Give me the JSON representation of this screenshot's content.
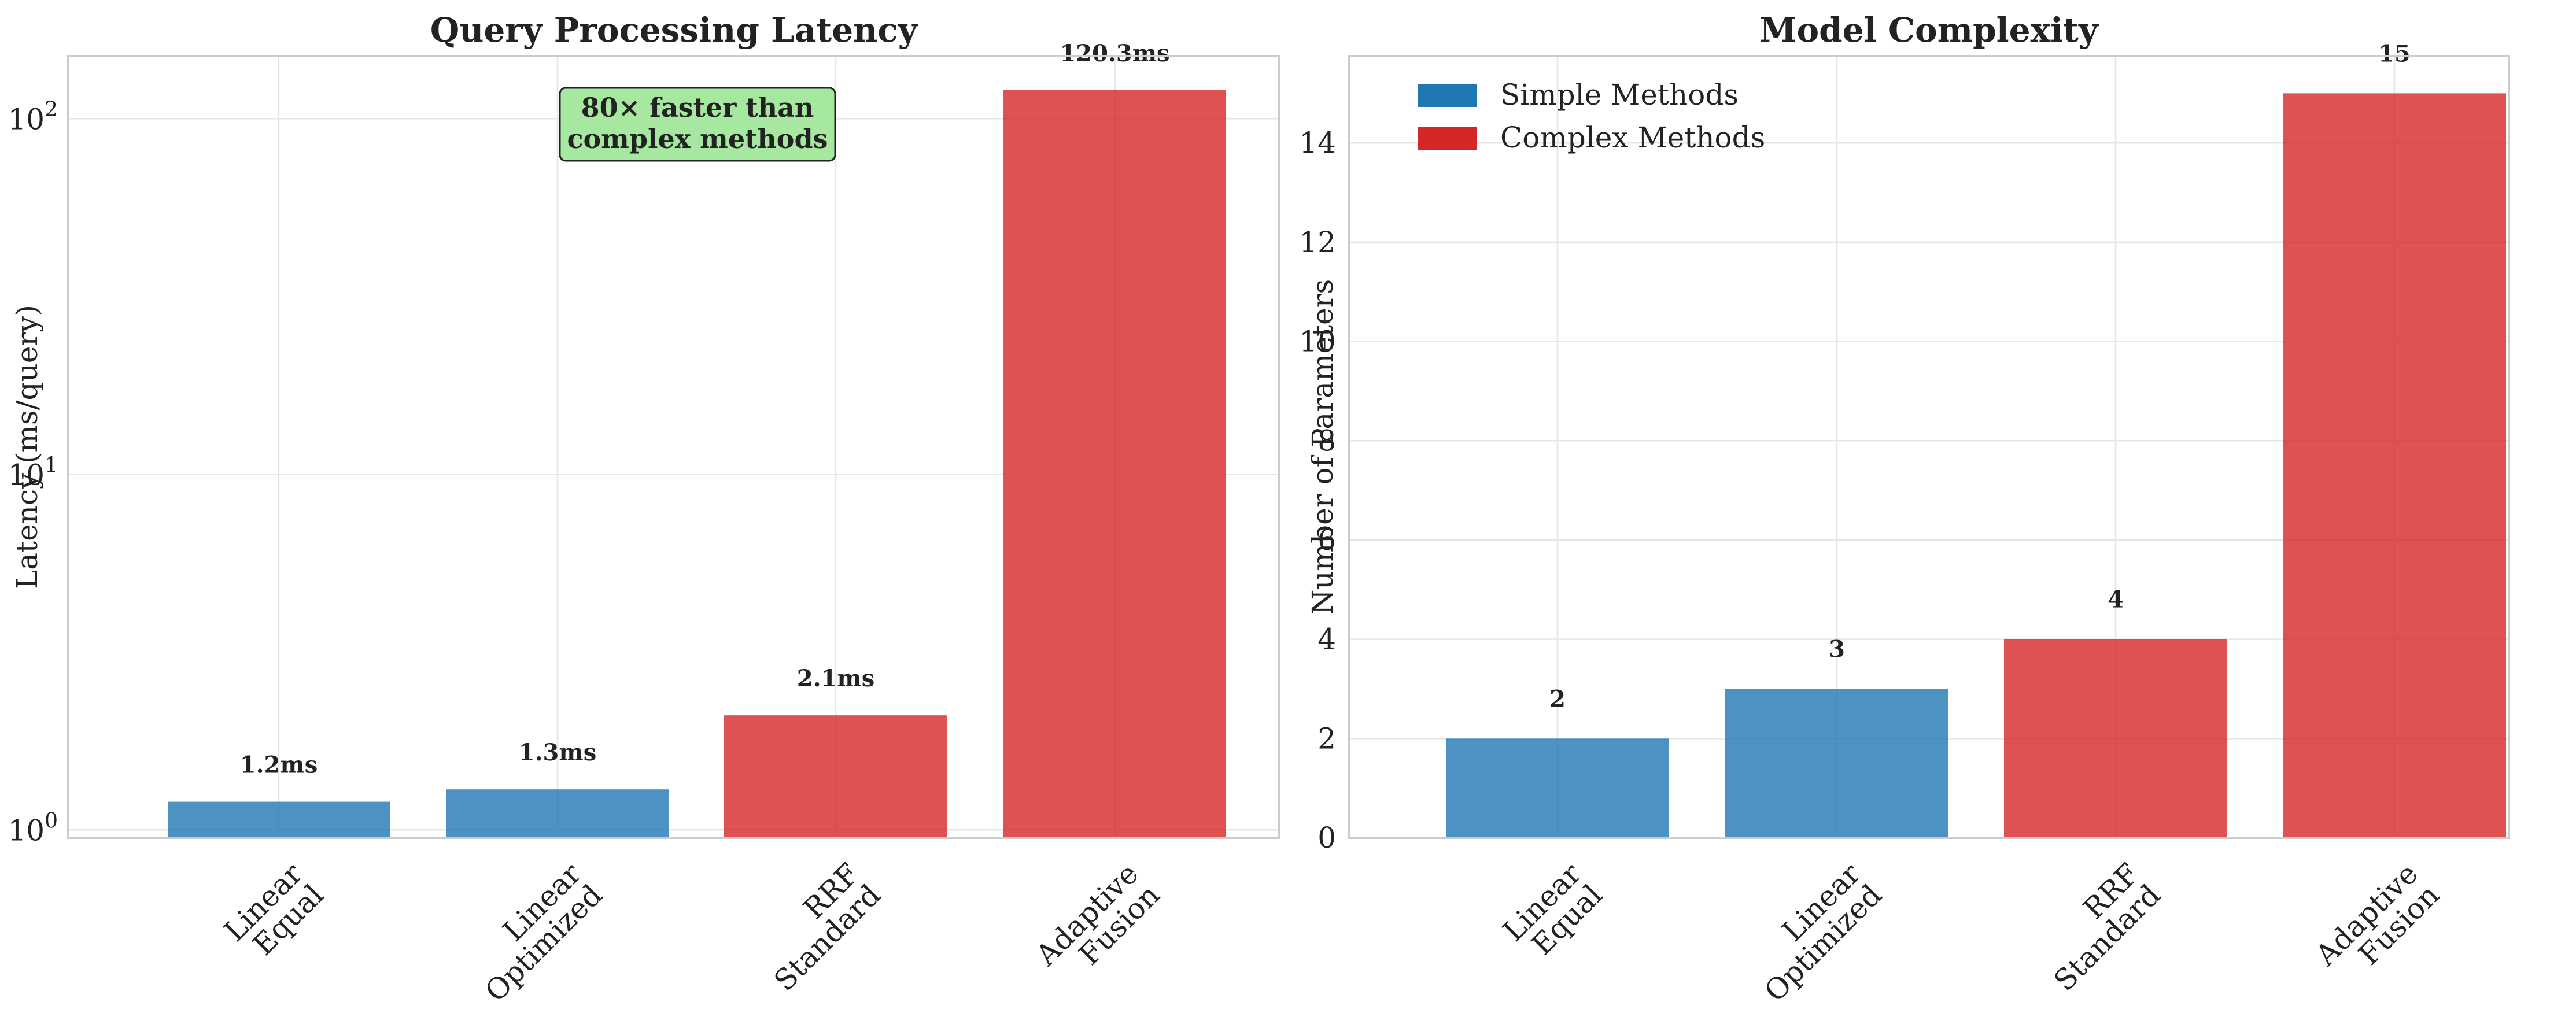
{
  "chart_data": [
    {
      "type": "bar",
      "title": "Query Processing Latency",
      "xlabel": "",
      "ylabel": "Latency (ms/query)",
      "yscale": "log",
      "ylim": [
        0.95,
        150
      ],
      "grid": true,
      "categories": [
        [
          "Linear",
          "Equal"
        ],
        [
          "Linear",
          "Optimized"
        ],
        [
          "RRF",
          "Standard"
        ],
        [
          "Adaptive",
          "Fusion"
        ]
      ],
      "values": [
        1.2,
        1.3,
        2.1,
        120.3
      ],
      "groups": [
        "simple",
        "simple",
        "complex",
        "complex"
      ],
      "data_labels": [
        "1.2ms",
        "1.3ms",
        "2.1ms",
        "120.3ms"
      ],
      "y_ticks": [
        {
          "value": 1,
          "base": "10",
          "exp": "0"
        },
        {
          "value": 10,
          "base": "10",
          "exp": "1"
        },
        {
          "value": 100,
          "base": "10",
          "exp": "2"
        }
      ],
      "annotation": {
        "lines": [
          "80× faster than",
          "complex methods"
        ],
        "bg": "#a6e8a0"
      }
    },
    {
      "type": "bar",
      "title": "Model Complexity",
      "xlabel": "",
      "ylabel": "Number of Parameters",
      "yscale": "linear",
      "ylim": [
        0,
        15.75
      ],
      "grid": true,
      "categories": [
        [
          "Linear",
          "Equal"
        ],
        [
          "Linear",
          "Optimized"
        ],
        [
          "RRF",
          "Standard"
        ],
        [
          "Adaptive",
          "Fusion"
        ]
      ],
      "values": [
        2,
        3,
        4,
        15
      ],
      "groups": [
        "simple",
        "simple",
        "complex",
        "complex"
      ],
      "data_labels": [
        "2",
        "3",
        "4",
        "15"
      ],
      "y_ticks": [
        {
          "value": 0,
          "label": "0"
        },
        {
          "value": 2,
          "label": "2"
        },
        {
          "value": 4,
          "label": "4"
        },
        {
          "value": 6,
          "label": "6"
        },
        {
          "value": 8,
          "label": "8"
        },
        {
          "value": 10,
          "label": "10"
        },
        {
          "value": 12,
          "label": "12"
        },
        {
          "value": 14,
          "label": "14"
        }
      ],
      "legend": {
        "position": "top-left",
        "entries": [
          {
            "label": "Simple Methods",
            "group": "simple"
          },
          {
            "label": "Complex Methods",
            "group": "complex"
          }
        ]
      }
    }
  ],
  "colors": {
    "simple": "#1f77b4",
    "complex": "#d62728",
    "simple_legend": "#1f77b4",
    "complex_legend": "#d62728",
    "grid": "#e6e6e6",
    "spine": "#cccccc"
  }
}
